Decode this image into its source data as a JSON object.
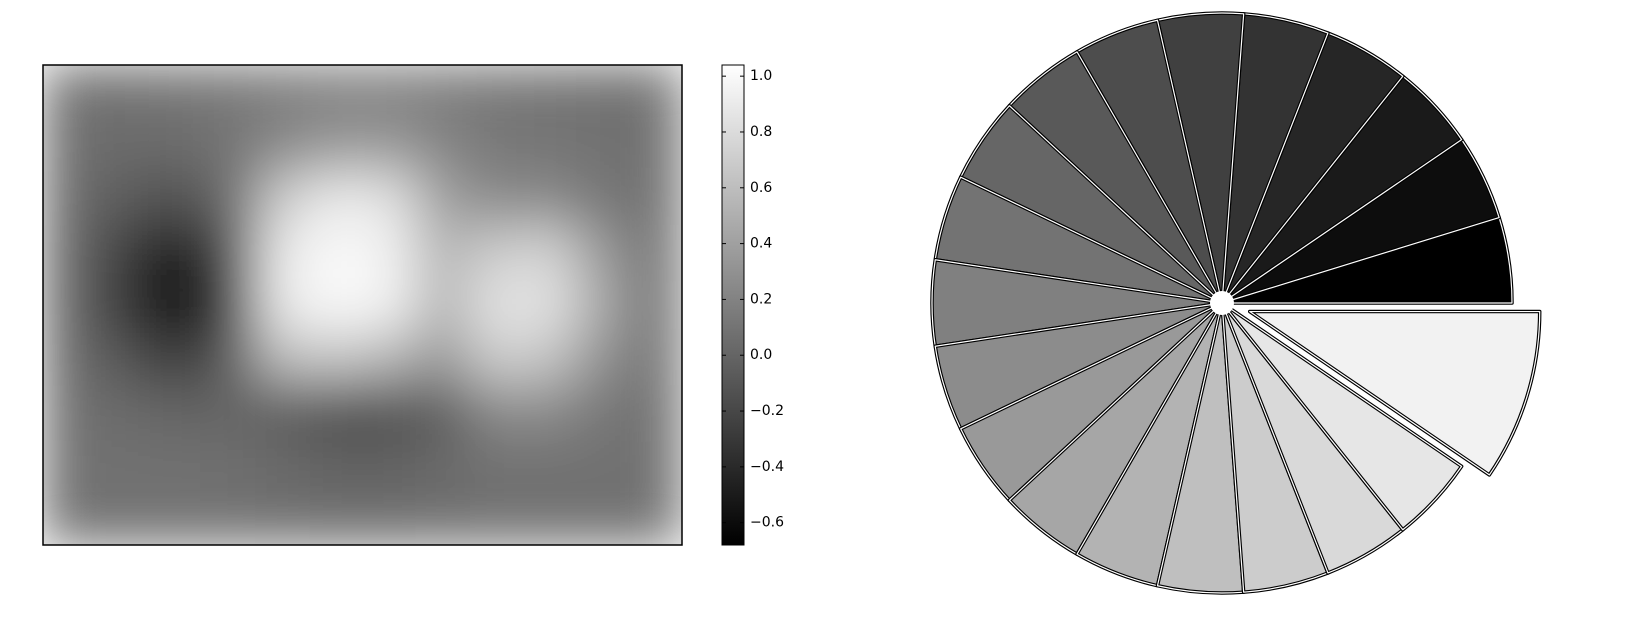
{
  "chart_data": [
    {
      "type": "heatmap",
      "cmap": "gray",
      "z": [
        [
          0.08,
          0.08,
          0.1,
          0.12,
          0.15,
          0.18,
          0.18,
          0.15,
          0.12,
          0.1,
          0.08,
          0.08
        ],
        [
          0.06,
          0.05,
          0.05,
          0.1,
          0.25,
          0.35,
          0.35,
          0.22,
          0.12,
          0.1,
          0.08,
          0.08
        ],
        [
          0.05,
          -0.05,
          -0.15,
          0.05,
          0.7,
          0.9,
          0.85,
          0.4,
          0.25,
          0.25,
          0.12,
          0.08
        ],
        [
          0.03,
          -0.25,
          -0.55,
          -0.15,
          0.9,
          1.0,
          0.95,
          0.55,
          0.7,
          0.75,
          0.35,
          0.1
        ],
        [
          0.03,
          -0.3,
          -0.65,
          -0.25,
          0.9,
          1.0,
          0.95,
          0.55,
          0.85,
          0.85,
          0.45,
          0.1
        ],
        [
          0.05,
          -0.1,
          -0.3,
          -0.05,
          0.6,
          0.65,
          0.55,
          0.35,
          0.7,
          0.65,
          0.3,
          0.1
        ],
        [
          0.07,
          0.05,
          0,
          0,
          -0.05,
          -0.15,
          -0.15,
          -0.05,
          0.25,
          0.25,
          0.12,
          0.08
        ],
        [
          0.08,
          0.08,
          0.08,
          0.07,
          0.03,
          -0.02,
          -0.02,
          0.03,
          0.08,
          0.08,
          0.08,
          0.08
        ],
        [
          0.08,
          0.08,
          0.08,
          0.08,
          0.07,
          0.06,
          0.06,
          0.07,
          0.08,
          0.08,
          0.08,
          0.08
        ]
      ],
      "clim": [
        -0.68,
        1.04
      ],
      "cticks": [
        {
          "value": -0.6,
          "label": "−0.6"
        },
        {
          "value": -0.4,
          "label": "−0.4"
        },
        {
          "value": -0.2,
          "label": "−0.2"
        },
        {
          "value": 0,
          "label": "0.0"
        },
        0.2,
        0.4,
        0.6,
        0.8,
        {
          "value": 1,
          "label": "1.0"
        }
      ]
    },
    {
      "type": "pie",
      "values": [
        1,
        1,
        1,
        1,
        1,
        1,
        1,
        1,
        1,
        1,
        1,
        1,
        1,
        1,
        1,
        1,
        1,
        1,
        1,
        2
      ],
      "colors": [
        "#000000",
        "#0d0d0d",
        "#1a1a1a",
        "#262626",
        "#333333",
        "#404040",
        "#4d4d4d",
        "#595959",
        "#666666",
        "#737373",
        "#808080",
        "#8c8c8c",
        "#999999",
        "#a6a6a6",
        "#b3b3b3",
        "#bfbfbf",
        "#cccccc",
        "#d9d9d9",
        "#e6e6e6",
        "#f2f2f2"
      ],
      "explode": [
        0,
        0,
        0,
        0,
        0,
        0,
        0,
        0,
        0,
        0,
        0,
        0,
        0,
        0,
        0,
        0,
        0,
        0,
        0,
        0.1
      ]
    }
  ]
}
